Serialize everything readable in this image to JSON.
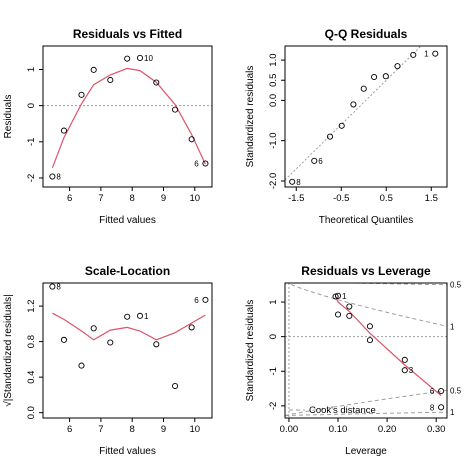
{
  "chart_data": [
    {
      "type": "scatter",
      "title": "Residuals vs Fitted",
      "xlabel": "Fitted values",
      "ylabel": "Residuals",
      "xlim": [
        5.15,
        10.55
      ],
      "ylim": [
        -2.25,
        1.65
      ],
      "xticks": [
        6,
        7,
        8,
        9,
        10
      ],
      "yticks": [
        -2,
        -1,
        0,
        1
      ],
      "refline": {
        "y": 0
      },
      "points": [
        {
          "x": 5.45,
          "y": -1.96,
          "label": "8"
        },
        {
          "x": 5.82,
          "y": -0.69,
          "label": ""
        },
        {
          "x": 6.38,
          "y": 0.3,
          "label": ""
        },
        {
          "x": 6.77,
          "y": 0.99,
          "label": ""
        },
        {
          "x": 7.3,
          "y": 0.71,
          "label": ""
        },
        {
          "x": 7.84,
          "y": 1.3,
          "label": ""
        },
        {
          "x": 8.25,
          "y": 1.32,
          "label": "10"
        },
        {
          "x": 8.77,
          "y": 0.64,
          "label": ""
        },
        {
          "x": 9.37,
          "y": -0.11,
          "label": ""
        },
        {
          "x": 9.9,
          "y": -0.93,
          "label": ""
        },
        {
          "x": 10.34,
          "y": -1.6,
          "label": "6"
        }
      ],
      "smooth": [
        {
          "x": 5.45,
          "y": -1.72
        },
        {
          "x": 5.82,
          "y": -0.88
        },
        {
          "x": 6.38,
          "y": 0.05
        },
        {
          "x": 6.77,
          "y": 0.58
        },
        {
          "x": 7.3,
          "y": 0.85
        },
        {
          "x": 7.84,
          "y": 1.03
        },
        {
          "x": 8.25,
          "y": 0.97
        },
        {
          "x": 8.77,
          "y": 0.65
        },
        {
          "x": 9.37,
          "y": 0.03
        },
        {
          "x": 9.9,
          "y": -0.8
        },
        {
          "x": 10.34,
          "y": -1.62
        }
      ]
    },
    {
      "type": "scatter",
      "title": "Q-Q Residuals",
      "xlabel": "Theoretical Quantiles",
      "ylabel": "Standardized residuals",
      "xlim": [
        -1.75,
        1.85
      ],
      "ylim": [
        -2.15,
        1.35
      ],
      "xticks": [
        -1.5,
        -0.5,
        0.5,
        1.5
      ],
      "yticks": [
        -2,
        -1,
        0,
        0.5,
        1
      ],
      "ytick_labels": [
        "-2.0",
        "-1.0",
        "0.0",
        "0.5",
        "1.0"
      ],
      "refline": {
        "slope": 1.1,
        "intercept": -0.05
      },
      "points": [
        {
          "x": -1.59,
          "y": -2.02,
          "label": "8"
        },
        {
          "x": -1.1,
          "y": -1.5,
          "label": "6"
        },
        {
          "x": -0.75,
          "y": -0.9,
          "label": ""
        },
        {
          "x": -0.49,
          "y": -0.63,
          "label": ""
        },
        {
          "x": -0.23,
          "y": -0.1,
          "label": ""
        },
        {
          "x": 0.0,
          "y": 0.29,
          "label": ""
        },
        {
          "x": 0.23,
          "y": 0.58,
          "label": ""
        },
        {
          "x": 0.49,
          "y": 0.6,
          "label": ""
        },
        {
          "x": 0.75,
          "y": 0.85,
          "label": ""
        },
        {
          "x": 1.1,
          "y": 1.13,
          "label": ""
        },
        {
          "x": 1.59,
          "y": 1.16,
          "label": "1"
        }
      ]
    },
    {
      "type": "scatter",
      "title": "Scale-Location",
      "xlabel": "Fitted values",
      "ylabel": "√|Standardized residuals|",
      "xlim": [
        5.15,
        10.55
      ],
      "ylim": [
        -0.06,
        1.46
      ],
      "xticks": [
        6,
        7,
        8,
        9,
        10
      ],
      "yticks": [
        0,
        0.4,
        0.8,
        1.2
      ],
      "ytick_labels": [
        "0.0",
        "0.4",
        "0.8",
        "1.2"
      ],
      "points": [
        {
          "x": 5.45,
          "y": 1.42,
          "label": "8"
        },
        {
          "x": 5.82,
          "y": 0.82,
          "label": ""
        },
        {
          "x": 6.38,
          "y": 0.53,
          "label": ""
        },
        {
          "x": 6.77,
          "y": 0.95,
          "label": ""
        },
        {
          "x": 7.3,
          "y": 0.79,
          "label": ""
        },
        {
          "x": 7.84,
          "y": 1.08,
          "label": ""
        },
        {
          "x": 8.25,
          "y": 1.09,
          "label": "1"
        },
        {
          "x": 8.77,
          "y": 0.77,
          "label": ""
        },
        {
          "x": 9.37,
          "y": 0.3,
          "label": ""
        },
        {
          "x": 9.9,
          "y": 0.96,
          "label": ""
        },
        {
          "x": 10.34,
          "y": 1.27,
          "label": "6"
        }
      ],
      "smooth": [
        {
          "x": 5.45,
          "y": 1.12
        },
        {
          "x": 5.82,
          "y": 1.05
        },
        {
          "x": 6.38,
          "y": 0.92
        },
        {
          "x": 6.77,
          "y": 0.82
        },
        {
          "x": 7.3,
          "y": 0.93
        },
        {
          "x": 7.84,
          "y": 0.96
        },
        {
          "x": 8.25,
          "y": 0.92
        },
        {
          "x": 8.77,
          "y": 0.82
        },
        {
          "x": 9.37,
          "y": 0.9
        },
        {
          "x": 9.9,
          "y": 1.01
        },
        {
          "x": 10.34,
          "y": 1.1
        }
      ]
    },
    {
      "type": "scatter",
      "title": "Residuals vs Leverage",
      "xlabel": "Leverage",
      "ylabel": "Standardized residuals",
      "xlim": [
        -0.008,
        0.322
      ],
      "ylim": [
        -2.35,
        1.55
      ],
      "xticks": [
        0,
        0.1,
        0.2,
        0.3
      ],
      "xtick_labels": [
        "0.00",
        "0.10",
        "0.20",
        "0.30"
      ],
      "yticks": [
        -2,
        -1,
        0,
        1
      ],
      "refline": {
        "y": 0
      },
      "cook_label": "Cook's distance",
      "cook_levels": [
        {
          "label": "0.5",
          "y_upper": 1.5,
          "y_lower": -1.55
        },
        {
          "label": "1",
          "y_upper": 0.3,
          "y_lower": -2.18
        }
      ],
      "points": [
        {
          "x": 0.095,
          "y": 1.16,
          "label": ""
        },
        {
          "x": 0.1,
          "y": 1.18,
          "label": "1"
        },
        {
          "x": 0.1,
          "y": 0.64,
          "label": ""
        },
        {
          "x": 0.123,
          "y": 0.87,
          "label": ""
        },
        {
          "x": 0.123,
          "y": 0.6,
          "label": ""
        },
        {
          "x": 0.165,
          "y": 0.3,
          "label": ""
        },
        {
          "x": 0.165,
          "y": -0.1,
          "label": ""
        },
        {
          "x": 0.236,
          "y": -0.67,
          "label": ""
        },
        {
          "x": 0.236,
          "y": -0.97,
          "label": "3"
        },
        {
          "x": 0.31,
          "y": -1.57,
          "label": "6"
        },
        {
          "x": 0.31,
          "y": -2.04,
          "label": "8"
        }
      ],
      "smooth": [
        {
          "x": 0.095,
          "y": 1.16
        },
        {
          "x": 0.1,
          "y": 1.0
        },
        {
          "x": 0.123,
          "y": 0.73
        },
        {
          "x": 0.165,
          "y": 0.1
        },
        {
          "x": 0.236,
          "y": -0.82
        },
        {
          "x": 0.31,
          "y": -1.7
        }
      ]
    }
  ],
  "colors": {
    "smooth": "#df536b",
    "refline": "#9e9e9e",
    "cook": "#9e9e9e",
    "axis": "#000000"
  }
}
